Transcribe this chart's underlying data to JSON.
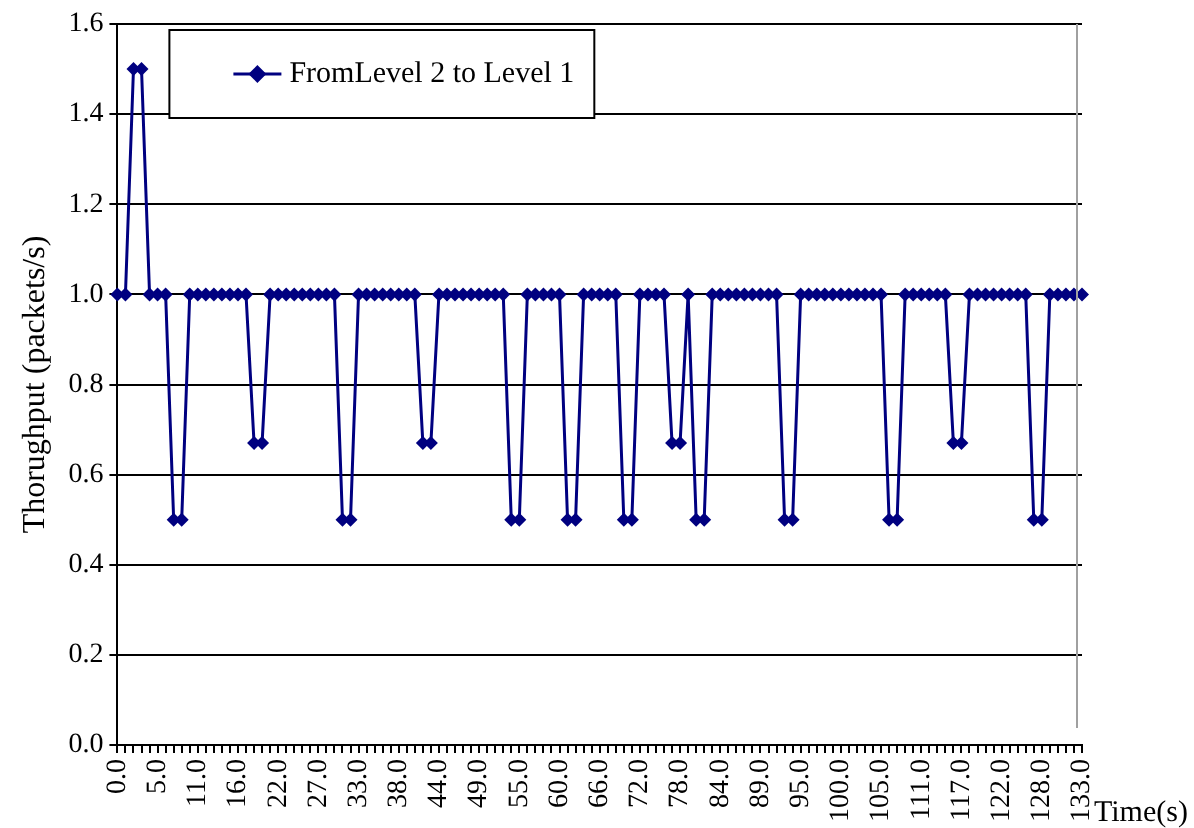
{
  "chart_data": {
    "type": "line",
    "xlabel": "Time(s)",
    "ylabel": "Thorughput (packets/s)",
    "categories": [
      "0.0",
      null,
      null,
      null,
      null,
      "5.0",
      null,
      null,
      null,
      null,
      "11.0",
      null,
      null,
      null,
      null,
      "16.0",
      null,
      null,
      null,
      null,
      "22.0",
      null,
      null,
      null,
      null,
      "27.0",
      null,
      null,
      null,
      null,
      "33.0",
      null,
      null,
      null,
      null,
      "38.0",
      null,
      null,
      null,
      null,
      "44.0",
      null,
      null,
      null,
      null,
      "49.0",
      null,
      null,
      null,
      null,
      "55.0",
      null,
      null,
      null,
      null,
      "60.0",
      null,
      null,
      null,
      null,
      "66.0",
      null,
      null,
      null,
      null,
      "72.0",
      null,
      null,
      null,
      null,
      "78.0",
      null,
      null,
      null,
      null,
      "84.0",
      null,
      null,
      null,
      null,
      "89.0",
      null,
      null,
      null,
      null,
      "95.0",
      null,
      null,
      null,
      null,
      "100.0",
      null,
      null,
      null,
      null,
      "105.0",
      null,
      null,
      null,
      null,
      "111.0",
      null,
      null,
      null,
      null,
      "117.0",
      null,
      null,
      null,
      null,
      "122.0",
      null,
      null,
      null,
      null,
      "128.0",
      null,
      null,
      null,
      null,
      "133.0"
    ],
    "series": [
      {
        "name": "FromLevel 2 to Level 1",
        "color": "#000080",
        "values": [
          1,
          1,
          1.5,
          1.5,
          1,
          1,
          1,
          0.5,
          0.5,
          1,
          1,
          1,
          1,
          1,
          1,
          1,
          1,
          0.67,
          0.67,
          1,
          1,
          1,
          1,
          1,
          1,
          1,
          1,
          1,
          0.5,
          0.5,
          1,
          1,
          1,
          1,
          1,
          1,
          1,
          1,
          0.67,
          0.67,
          1,
          1,
          1,
          1,
          1,
          1,
          1,
          1,
          1,
          0.5,
          0.5,
          1,
          1,
          1,
          1,
          1,
          0.5,
          0.5,
          1,
          1,
          1,
          1,
          1,
          0.5,
          0.5,
          1,
          1,
          1,
          1,
          0.67,
          0.67,
          1,
          0.5,
          0.5,
          1,
          1,
          1,
          1,
          1,
          1,
          1,
          1,
          1,
          0.5,
          0.5,
          1,
          1,
          1,
          1,
          1,
          1,
          1,
          1,
          1,
          1,
          1,
          0.5,
          0.5,
          1,
          1,
          1,
          1,
          1,
          1,
          0.67,
          0.67,
          1,
          1,
          1,
          1,
          1,
          1,
          1,
          1,
          0.5,
          0.5,
          1,
          1,
          1,
          1,
          1
        ]
      }
    ],
    "ylim": [
      0,
      1.6
    ],
    "yticks": [
      {
        "value": 0,
        "label": "0.0"
      },
      {
        "value": 0.2,
        "label": "0.2"
      },
      {
        "value": 0.4,
        "label": "0.4"
      },
      {
        "value": 0.6,
        "label": "0.6"
      },
      {
        "value": 0.8,
        "label": "0.8"
      },
      {
        "value": 1,
        "label": "1.0"
      },
      {
        "value": 1.2,
        "label": "1.2"
      },
      {
        "value": 1.4,
        "label": "1.4"
      },
      {
        "value": 1.6,
        "label": "1.6"
      }
    ],
    "grid": "y",
    "legend": "top left",
    "marker": "diamond",
    "line_style": "solid"
  }
}
